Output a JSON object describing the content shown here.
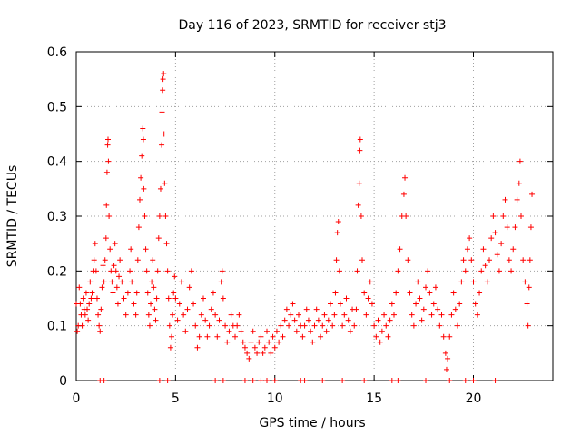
{
  "chart_data": {
    "type": "scatter",
    "title": "Day 116 of 2023, SRMTID for receiver stj3",
    "xlabel": "GPS time / hours",
    "ylabel": "SRMTID / TECUs",
    "xlim": [
      0,
      24
    ],
    "ylim": [
      0,
      0.6
    ],
    "xticks": [
      0,
      5,
      10,
      15,
      20
    ],
    "xtick_labels": [
      "0",
      "5",
      "10",
      "15",
      "20"
    ],
    "yticks": [
      0,
      0.1,
      0.2,
      0.3,
      0.4,
      0.5,
      0.6
    ],
    "ytick_labels": [
      "0",
      "0.1",
      "0.2",
      "0.3",
      "0.4",
      "0.5",
      "0.6"
    ],
    "grid": true,
    "marker": "+",
    "color": "#ff0000",
    "series": [
      {
        "name": "SRMTID",
        "points": [
          [
            0.0,
            0.14
          ],
          [
            0.05,
            0.09
          ],
          [
            0.1,
            0.1
          ],
          [
            0.15,
            0.17
          ],
          [
            0.2,
            0.14
          ],
          [
            0.25,
            0.12
          ],
          [
            0.3,
            0.1
          ],
          [
            0.35,
            0.15
          ],
          [
            0.4,
            0.13
          ],
          [
            0.45,
            0.12
          ],
          [
            0.5,
            0.16
          ],
          [
            0.55,
            0.13
          ],
          [
            0.6,
            0.11
          ],
          [
            0.65,
            0.14
          ],
          [
            0.7,
            0.18
          ],
          [
            0.75,
            0.15
          ],
          [
            0.8,
            0.16
          ],
          [
            0.85,
            0.2
          ],
          [
            0.9,
            0.22
          ],
          [
            0.95,
            0.25
          ],
          [
            1.0,
            0.2
          ],
          [
            1.05,
            0.15
          ],
          [
            1.1,
            0.12
          ],
          [
            1.15,
            0.1
          ],
          [
            1.2,
            0.09
          ],
          [
            1.25,
            0.13
          ],
          [
            1.3,
            0.17
          ],
          [
            1.35,
            0.21
          ],
          [
            1.4,
            0.18
          ],
          [
            1.45,
            0.22
          ],
          [
            1.5,
            0.26
          ],
          [
            1.52,
            0.32
          ],
          [
            1.55,
            0.38
          ],
          [
            1.58,
            0.43
          ],
          [
            1.6,
            0.44
          ],
          [
            1.62,
            0.4
          ],
          [
            1.65,
            0.3
          ],
          [
            1.7,
            0.24
          ],
          [
            1.75,
            0.2
          ],
          [
            1.8,
            0.18
          ],
          [
            1.85,
            0.16
          ],
          [
            1.9,
            0.21
          ],
          [
            1.95,
            0.25
          ],
          [
            2.0,
            0.2
          ],
          [
            2.05,
            0.17
          ],
          [
            2.1,
            0.14
          ],
          [
            2.15,
            0.19
          ],
          [
            2.2,
            0.22
          ],
          [
            2.3,
            0.18
          ],
          [
            2.4,
            0.15
          ],
          [
            2.5,
            0.12
          ],
          [
            2.6,
            0.16
          ],
          [
            2.7,
            0.2
          ],
          [
            2.75,
            0.24
          ],
          [
            2.8,
            0.18
          ],
          [
            2.9,
            0.14
          ],
          [
            3.0,
            0.12
          ],
          [
            3.05,
            0.16
          ],
          [
            3.1,
            0.22
          ],
          [
            3.15,
            0.28
          ],
          [
            3.2,
            0.33
          ],
          [
            3.25,
            0.37
          ],
          [
            3.3,
            0.41
          ],
          [
            3.35,
            0.46
          ],
          [
            3.38,
            0.44
          ],
          [
            3.4,
            0.35
          ],
          [
            3.45,
            0.3
          ],
          [
            3.5,
            0.24
          ],
          [
            3.55,
            0.2
          ],
          [
            3.6,
            0.16
          ],
          [
            3.65,
            0.12
          ],
          [
            3.7,
            0.1
          ],
          [
            3.75,
            0.14
          ],
          [
            3.8,
            0.18
          ],
          [
            3.85,
            0.22
          ],
          [
            3.9,
            0.17
          ],
          [
            3.95,
            0.13
          ],
          [
            4.0,
            0.11
          ],
          [
            4.05,
            0.15
          ],
          [
            4.1,
            0.2
          ],
          [
            4.15,
            0.26
          ],
          [
            4.2,
            0.3
          ],
          [
            4.25,
            0.35
          ],
          [
            4.3,
            0.43
          ],
          [
            4.32,
            0.49
          ],
          [
            4.35,
            0.53
          ],
          [
            4.37,
            0.55
          ],
          [
            4.4,
            0.56
          ],
          [
            4.42,
            0.45
          ],
          [
            4.45,
            0.36
          ],
          [
            4.5,
            0.3
          ],
          [
            4.55,
            0.25
          ],
          [
            4.6,
            0.2
          ],
          [
            4.65,
            0.15
          ],
          [
            4.7,
            0.1
          ],
          [
            4.75,
            0.06
          ],
          [
            4.8,
            0.08
          ],
          [
            4.85,
            0.12
          ],
          [
            4.9,
            0.16
          ],
          [
            4.95,
            0.19
          ],
          [
            5.0,
            0.15
          ],
          [
            5.1,
            0.11
          ],
          [
            5.2,
            0.14
          ],
          [
            5.3,
            0.18
          ],
          [
            5.4,
            0.12
          ],
          [
            5.5,
            0.09
          ],
          [
            5.6,
            0.13
          ],
          [
            5.7,
            0.17
          ],
          [
            5.8,
            0.2
          ],
          [
            5.9,
            0.14
          ],
          [
            6.0,
            0.1
          ],
          [
            6.1,
            0.06
          ],
          [
            6.2,
            0.08
          ],
          [
            6.3,
            0.12
          ],
          [
            6.4,
            0.15
          ],
          [
            6.5,
            0.11
          ],
          [
            6.6,
            0.08
          ],
          [
            6.7,
            0.1
          ],
          [
            6.8,
            0.13
          ],
          [
            6.9,
            0.16
          ],
          [
            7.0,
            0.12
          ],
          [
            7.1,
            0.08
          ],
          [
            7.2,
            0.11
          ],
          [
            7.3,
            0.18
          ],
          [
            7.35,
            0.2
          ],
          [
            7.4,
            0.15
          ],
          [
            7.5,
            0.1
          ],
          [
            7.6,
            0.07
          ],
          [
            7.7,
            0.09
          ],
          [
            7.8,
            0.12
          ],
          [
            7.9,
            0.1
          ],
          [
            8.0,
            0.08
          ],
          [
            8.1,
            0.1
          ],
          [
            8.2,
            0.12
          ],
          [
            8.3,
            0.09
          ],
          [
            8.4,
            0.07
          ],
          [
            8.5,
            0.06
          ],
          [
            8.6,
            0.05
          ],
          [
            8.7,
            0.04
          ],
          [
            8.8,
            0.07
          ],
          [
            8.9,
            0.09
          ],
          [
            9.0,
            0.06
          ],
          [
            9.1,
            0.05
          ],
          [
            9.2,
            0.07
          ],
          [
            9.3,
            0.08
          ],
          [
            9.4,
            0.05
          ],
          [
            9.5,
            0.06
          ],
          [
            9.6,
            0.09
          ],
          [
            9.7,
            0.07
          ],
          [
            9.8,
            0.05
          ],
          [
            9.9,
            0.08
          ],
          [
            10.0,
            0.06
          ],
          [
            10.1,
            0.09
          ],
          [
            10.2,
            0.07
          ],
          [
            10.3,
            0.1
          ],
          [
            10.4,
            0.08
          ],
          [
            10.5,
            0.11
          ],
          [
            10.6,
            0.13
          ],
          [
            10.7,
            0.1
          ],
          [
            10.8,
            0.12
          ],
          [
            10.9,
            0.14
          ],
          [
            11.0,
            0.11
          ],
          [
            11.1,
            0.09
          ],
          [
            11.2,
            0.12
          ],
          [
            11.3,
            0.1
          ],
          [
            11.4,
            0.08
          ],
          [
            11.5,
            0.1
          ],
          [
            11.6,
            0.13
          ],
          [
            11.7,
            0.11
          ],
          [
            11.8,
            0.09
          ],
          [
            11.9,
            0.07
          ],
          [
            12.0,
            0.1
          ],
          [
            12.1,
            0.13
          ],
          [
            12.2,
            0.11
          ],
          [
            12.3,
            0.08
          ],
          [
            12.4,
            0.1
          ],
          [
            12.5,
            0.12
          ],
          [
            12.6,
            0.09
          ],
          [
            12.7,
            0.11
          ],
          [
            12.8,
            0.14
          ],
          [
            12.9,
            0.1
          ],
          [
            13.0,
            0.12
          ],
          [
            13.05,
            0.16
          ],
          [
            13.1,
            0.22
          ],
          [
            13.15,
            0.27
          ],
          [
            13.2,
            0.29
          ],
          [
            13.25,
            0.2
          ],
          [
            13.3,
            0.14
          ],
          [
            13.4,
            0.1
          ],
          [
            13.5,
            0.12
          ],
          [
            13.6,
            0.15
          ],
          [
            13.7,
            0.11
          ],
          [
            13.8,
            0.09
          ],
          [
            13.9,
            0.13
          ],
          [
            14.0,
            0.1
          ],
          [
            14.1,
            0.13
          ],
          [
            14.15,
            0.2
          ],
          [
            14.2,
            0.32
          ],
          [
            14.25,
            0.36
          ],
          [
            14.28,
            0.42
          ],
          [
            14.3,
            0.44
          ],
          [
            14.35,
            0.3
          ],
          [
            14.4,
            0.22
          ],
          [
            14.5,
            0.16
          ],
          [
            14.6,
            0.12
          ],
          [
            14.7,
            0.15
          ],
          [
            14.8,
            0.18
          ],
          [
            14.9,
            0.14
          ],
          [
            15.0,
            0.1
          ],
          [
            15.1,
            0.08
          ],
          [
            15.2,
            0.11
          ],
          [
            15.3,
            0.07
          ],
          [
            15.4,
            0.09
          ],
          [
            15.5,
            0.12
          ],
          [
            15.6,
            0.1
          ],
          [
            15.7,
            0.08
          ],
          [
            15.8,
            0.11
          ],
          [
            15.9,
            0.14
          ],
          [
            16.0,
            0.12
          ],
          [
            16.1,
            0.16
          ],
          [
            16.2,
            0.2
          ],
          [
            16.3,
            0.24
          ],
          [
            16.4,
            0.3
          ],
          [
            16.5,
            0.34
          ],
          [
            16.55,
            0.37
          ],
          [
            16.6,
            0.3
          ],
          [
            16.7,
            0.22
          ],
          [
            16.8,
            0.16
          ],
          [
            16.9,
            0.12
          ],
          [
            17.0,
            0.1
          ],
          [
            17.1,
            0.14
          ],
          [
            17.2,
            0.18
          ],
          [
            17.3,
            0.15
          ],
          [
            17.4,
            0.11
          ],
          [
            17.5,
            0.13
          ],
          [
            17.6,
            0.17
          ],
          [
            17.7,
            0.2
          ],
          [
            17.8,
            0.16
          ],
          [
            17.9,
            0.12
          ],
          [
            18.0,
            0.14
          ],
          [
            18.1,
            0.17
          ],
          [
            18.2,
            0.13
          ],
          [
            18.3,
            0.1
          ],
          [
            18.4,
            0.12
          ],
          [
            18.5,
            0.08
          ],
          [
            18.6,
            0.05
          ],
          [
            18.65,
            0.02
          ],
          [
            18.7,
            0.04
          ],
          [
            18.8,
            0.08
          ],
          [
            18.9,
            0.12
          ],
          [
            19.0,
            0.16
          ],
          [
            19.1,
            0.13
          ],
          [
            19.2,
            0.1
          ],
          [
            19.3,
            0.14
          ],
          [
            19.4,
            0.18
          ],
          [
            19.5,
            0.22
          ],
          [
            19.6,
            0.2
          ],
          [
            19.7,
            0.24
          ],
          [
            19.8,
            0.26
          ],
          [
            19.9,
            0.22
          ],
          [
            20.0,
            0.18
          ],
          [
            20.1,
            0.14
          ],
          [
            20.2,
            0.12
          ],
          [
            20.3,
            0.16
          ],
          [
            20.4,
            0.2
          ],
          [
            20.5,
            0.24
          ],
          [
            20.6,
            0.21
          ],
          [
            20.7,
            0.18
          ],
          [
            20.8,
            0.22
          ],
          [
            20.9,
            0.26
          ],
          [
            21.0,
            0.3
          ],
          [
            21.1,
            0.27
          ],
          [
            21.2,
            0.23
          ],
          [
            21.3,
            0.2
          ],
          [
            21.4,
            0.25
          ],
          [
            21.5,
            0.3
          ],
          [
            21.6,
            0.33
          ],
          [
            21.7,
            0.28
          ],
          [
            21.8,
            0.22
          ],
          [
            21.9,
            0.2
          ],
          [
            22.0,
            0.24
          ],
          [
            22.1,
            0.28
          ],
          [
            22.2,
            0.33
          ],
          [
            22.3,
            0.36
          ],
          [
            22.35,
            0.4
          ],
          [
            22.4,
            0.3
          ],
          [
            22.5,
            0.22
          ],
          [
            22.6,
            0.18
          ],
          [
            22.7,
            0.14
          ],
          [
            22.75,
            0.1
          ],
          [
            22.8,
            0.17
          ],
          [
            22.85,
            0.22
          ],
          [
            22.9,
            0.28
          ],
          [
            22.95,
            0.34
          ]
        ]
      }
    ],
    "baseline_points_x": [
      1.2,
      1.4,
      4.2,
      4.6,
      7.0,
      7.4,
      8.5,
      8.9,
      9.3,
      9.6,
      10.0,
      11.3,
      11.5,
      12.4,
      13.4,
      14.5,
      15.9,
      16.2,
      17.6,
      18.8,
      19.6,
      20.0,
      21.1
    ]
  }
}
